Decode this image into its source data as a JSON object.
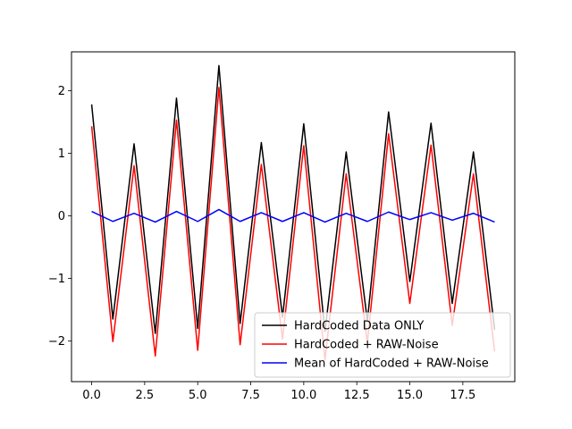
{
  "chart_data": {
    "type": "line",
    "title": "",
    "xlabel": "",
    "ylabel": "",
    "xlim": [
      -0.95,
      19.95
    ],
    "ylim": [
      -2.65,
      2.62
    ],
    "xticks": [
      0.0,
      2.5,
      5.0,
      7.5,
      10.0,
      12.5,
      15.0,
      17.5
    ],
    "xtick_labels": [
      "0.0",
      "2.5",
      "5.0",
      "7.5",
      "10.0",
      "12.5",
      "15.0",
      "17.5"
    ],
    "yticks": [
      2,
      1,
      0,
      -1,
      -2
    ],
    "ytick_labels": [
      "2",
      "1",
      "0",
      "−1",
      "−2"
    ],
    "grid": false,
    "legend_position": "lower-right",
    "x": [
      0,
      1,
      2,
      3,
      4,
      5,
      6,
      7,
      8,
      9,
      10,
      11,
      12,
      13,
      14,
      15,
      16,
      17,
      18,
      19
    ],
    "series": [
      {
        "name": "HardCoded Data ONLY",
        "color": "#000000",
        "values": [
          1.78,
          -1.65,
          1.15,
          -1.88,
          1.88,
          -1.8,
          2.4,
          -1.72,
          1.17,
          -1.62,
          1.47,
          -1.85,
          1.02,
          -1.68,
          1.66,
          -1.05,
          1.48,
          -1.4,
          1.02,
          -1.82
        ]
      },
      {
        "name": "HardCoded + RAW-Noise",
        "color": "#ff0000",
        "values": [
          1.43,
          -2.01,
          0.8,
          -2.24,
          1.53,
          -2.15,
          2.05,
          -2.06,
          0.82,
          -1.97,
          1.12,
          -2.3,
          0.67,
          -2.03,
          1.31,
          -1.4,
          1.13,
          -1.75,
          0.67,
          -2.17
        ]
      },
      {
        "name": "Mean of HardCoded + RAW-Noise",
        "color": "#0000ff",
        "values": [
          0.07,
          -0.09,
          0.04,
          -0.1,
          0.07,
          -0.09,
          0.1,
          -0.09,
          0.05,
          -0.09,
          0.05,
          -0.1,
          0.04,
          -0.09,
          0.06,
          -0.06,
          0.05,
          -0.07,
          0.04,
          -0.1
        ]
      }
    ]
  }
}
